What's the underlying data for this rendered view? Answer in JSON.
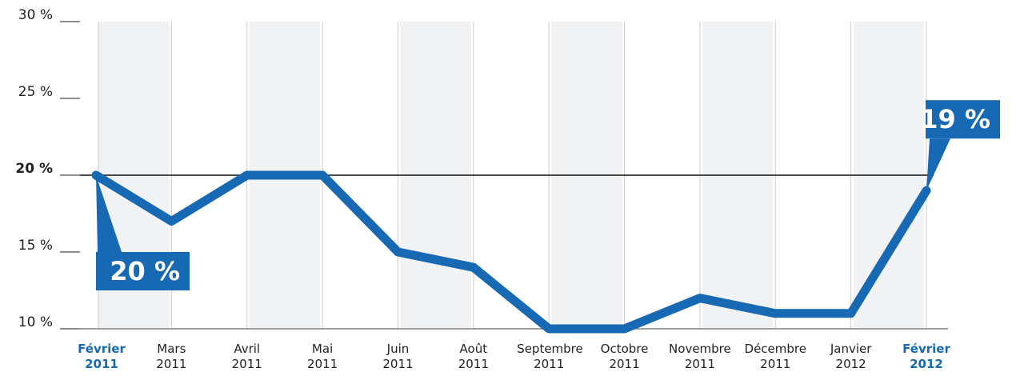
{
  "chart_data": {
    "type": "line",
    "categories": [
      "Février 2011",
      "Mars 2011",
      "Avril 2011",
      "Mai 2011",
      "Juin 2011",
      "Août 2011",
      "Septembre 2011",
      "Octobre 2011",
      "Novembre 2011",
      "Décembre 2011",
      "Janvier 2012",
      "Février 2012"
    ],
    "values": [
      20,
      17,
      20,
      20,
      15,
      14,
      10,
      10,
      12,
      11,
      11,
      19
    ],
    "value_labels": [
      "20 %",
      null,
      null,
      null,
      null,
      null,
      null,
      null,
      null,
      null,
      null,
      "19 %"
    ],
    "color": "#1769b3",
    "ylim": [
      10,
      30
    ],
    "yticks": [
      {
        "value": 10,
        "label": "10 %"
      },
      {
        "value": 15,
        "label": "15 %"
      },
      {
        "value": 20,
        "label": "20 %"
      },
      {
        "value": 25,
        "label": "25 %"
      },
      {
        "value": 30,
        "label": "30 %"
      }
    ],
    "reference_line": 20
  }
}
